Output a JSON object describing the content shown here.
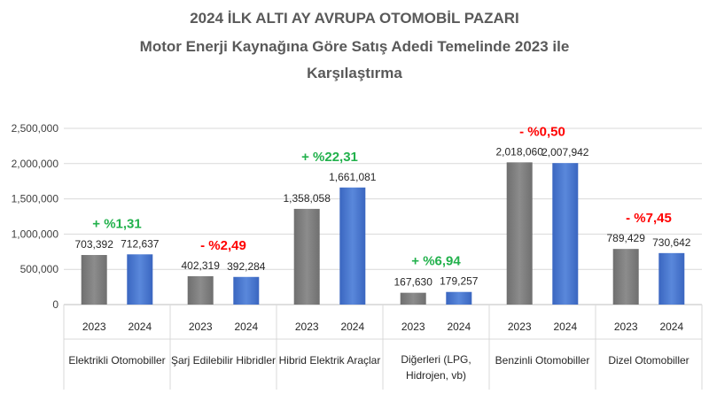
{
  "chart_data": {
    "type": "bar",
    "title": [
      "2024 İLK ALTI AY AVRUPA OTOMOBİL PAZARI",
      "Motor Enerji Kaynağına Göre Satış Adedi Temelinde 2023 ile",
      "Karşılaştırma"
    ],
    "ylim": [
      0,
      2500000
    ],
    "yticks": [
      "0",
      "500,000",
      "1,000,000",
      "1,500,000",
      "2,000,000",
      "2,500,000"
    ],
    "grid": true,
    "legend": "none",
    "groups": [
      {
        "label": [
          "Elektrikli Otomobiller"
        ],
        "bars": [
          {
            "year": "2023",
            "value": 703392,
            "label": "703,392"
          },
          {
            "year": "2024",
            "value": 712637,
            "label": "712,637"
          }
        ],
        "change": "+ %1,31",
        "change_color": "#22b14c"
      },
      {
        "label": [
          "Şarj Edilebilir Hibridler"
        ],
        "bars": [
          {
            "year": "2023",
            "value": 402319,
            "label": "402,319"
          },
          {
            "year": "2024",
            "value": 392284,
            "label": "392,284"
          }
        ],
        "change": "- %2,49",
        "change_color": "#ff0000"
      },
      {
        "label": [
          "Hibrid Elektrik Araçlar"
        ],
        "bars": [
          {
            "year": "2023",
            "value": 1358058,
            "label": "1,358,058"
          },
          {
            "year": "2024",
            "value": 1661081,
            "label": "1,661,081"
          }
        ],
        "change": "+ %22,31",
        "change_color": "#22b14c"
      },
      {
        "label": [
          "Diğerleri (LPG,",
          "Hidrojen, vb)"
        ],
        "bars": [
          {
            "year": "2023",
            "value": 167630,
            "label": "167,630"
          },
          {
            "year": "2024",
            "value": 179257,
            "label": "179,257"
          }
        ],
        "change": "+ %6,94",
        "change_color": "#22b14c"
      },
      {
        "label": [
          "Benzinli Otomobiller"
        ],
        "bars": [
          {
            "year": "2023",
            "value": 2018060,
            "label": "2,018,060"
          },
          {
            "year": "2024",
            "value": 2007942,
            "label": "2,007,942"
          }
        ],
        "change": "- %0,50",
        "change_color": "#ff0000"
      },
      {
        "label": [
          "Dizel Otomobiller"
        ],
        "bars": [
          {
            "year": "2023",
            "value": 789429,
            "label": "789,429"
          },
          {
            "year": "2024",
            "value": 730642,
            "label": "730,642"
          }
        ],
        "change": "- %7,45",
        "change_color": "#ff0000"
      }
    ],
    "colors": {
      "2023": "#7f7f7f",
      "2024": "#4472c4"
    }
  }
}
